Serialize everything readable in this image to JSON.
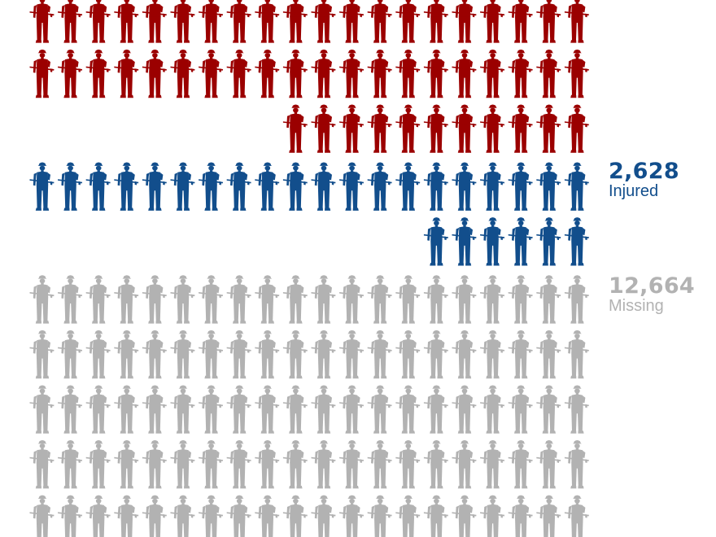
{
  "chart_data": {
    "type": "pictogram",
    "title": "",
    "icon": "soldier-icon",
    "icons_per_row": 20,
    "categories": [
      {
        "key": "killed",
        "value": "",
        "label": "",
        "rows": [
          20,
          20,
          11
        ],
        "color": "#9b0000"
      },
      {
        "key": "injured",
        "value": "2,628",
        "label": "Injured",
        "rows": [
          20,
          6
        ],
        "color": "#124e8c"
      },
      {
        "key": "missing",
        "value": "12,664",
        "label": "Missing",
        "rows": [
          20,
          20,
          20,
          20,
          20
        ],
        "color": "#b2b2b2"
      }
    ]
  }
}
